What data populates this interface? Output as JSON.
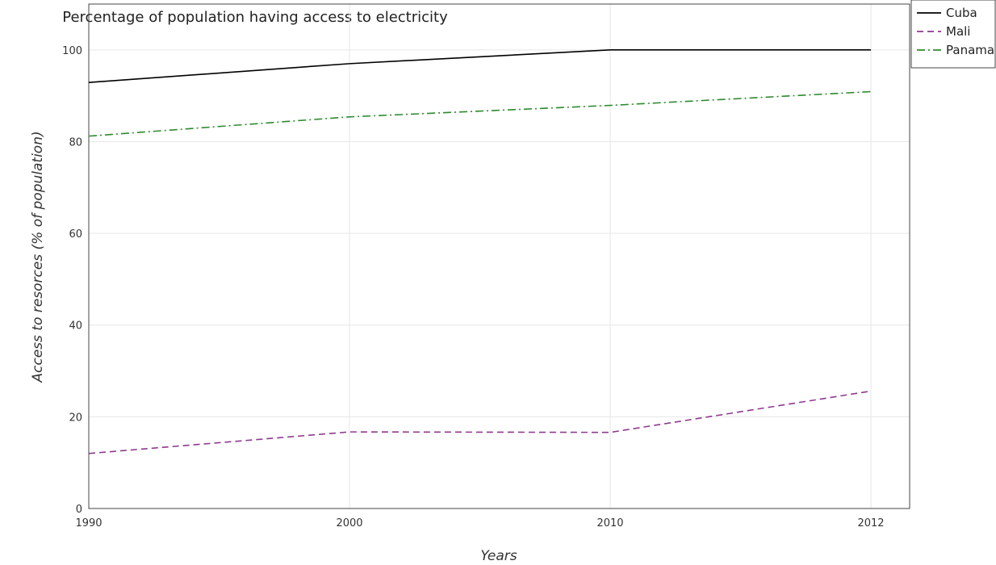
{
  "chart_data": {
    "type": "line",
    "title": "Percentage of population having access to electricity",
    "xlabel": "Years",
    "ylabel": "Access to resorces (% of population)",
    "categories": [
      "1990",
      "2000",
      "2010",
      "2012"
    ],
    "yticks": [
      "0",
      "20",
      "40",
      "60",
      "80",
      "100"
    ],
    "ylim": [
      0,
      110
    ],
    "grid": true,
    "legend_position": "top-right",
    "series": [
      {
        "name": "Cuba",
        "color": "#000000",
        "dash": "solid",
        "values": [
          92.9,
          97.0,
          100.0,
          100.0
        ]
      },
      {
        "name": "Mali",
        "color": "#8e3a8e",
        "dash": "dashed",
        "values": [
          12.0,
          16.7,
          16.6,
          25.6
        ]
      },
      {
        "name": "Panama",
        "color": "#2e8b2e",
        "dash": "dashdot",
        "values": [
          81.2,
          85.4,
          87.9,
          90.9
        ]
      }
    ]
  }
}
